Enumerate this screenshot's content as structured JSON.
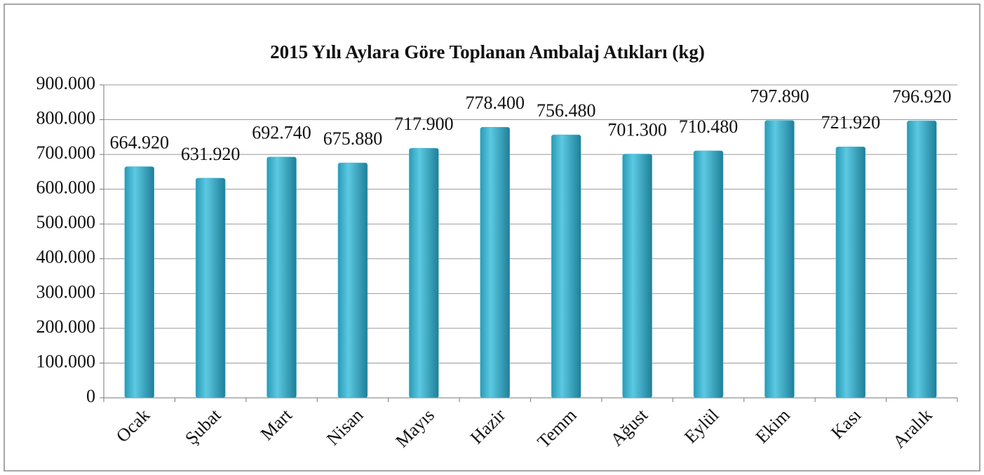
{
  "chart_data": {
    "type": "bar",
    "title": "2015 Yılı  Aylara Göre Toplanan Ambalaj Atıkları (kg)",
    "categories": [
      "Ocak",
      "Şubat",
      "Mart",
      "Nisan",
      "Mayıs",
      "Hazir",
      "Temm",
      "Ağust",
      "Eylül",
      "Ekim",
      "Kası",
      "Aralık"
    ],
    "values": [
      664920,
      631920,
      692740,
      675880,
      717900,
      778400,
      756480,
      701300,
      710480,
      797890,
      721920,
      796920
    ],
    "value_labels": [
      "664.920",
      "631.920",
      "692.740",
      "675.880",
      "717.900",
      "778.400",
      "756.480",
      "701.300",
      "710.480",
      "797.890",
      "721.920",
      "796.920"
    ],
    "color": "#4bb8d4",
    "ylim": [
      0,
      900000
    ],
    "yticks": [
      0,
      {
        "value": 100000,
        "label": "100.000"
      },
      {
        "value": 200000,
        "label": "200.000"
      },
      {
        "value": 300000,
        "label": "300.000"
      },
      {
        "value": 400000,
        "label": "400.000"
      },
      {
        "value": 500000,
        "label": "500.000"
      },
      {
        "value": 600000,
        "label": "600.000"
      },
      {
        "value": 700000,
        "label": "700.000"
      },
      {
        "value": 800000,
        "label": "800.000"
      },
      {
        "value": 900000,
        "label": "900.000"
      }
    ],
    "grid": true
  }
}
